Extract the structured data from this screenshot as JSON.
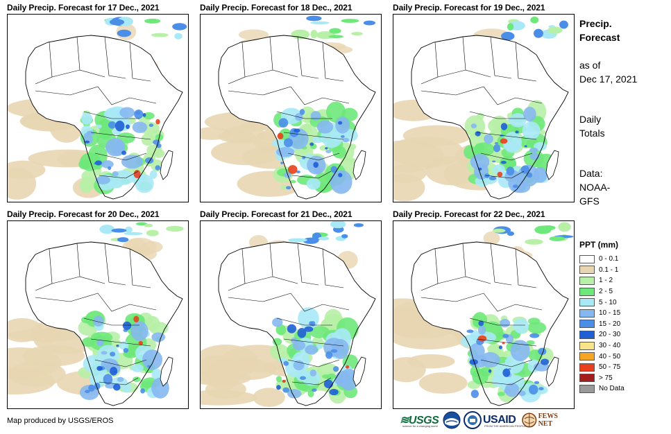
{
  "panels": [
    {
      "title": "Daily Precip. Forecast for 17 Dec., 2021"
    },
    {
      "title": "Daily Precip. Forecast for 18 Dec., 2021"
    },
    {
      "title": "Daily Precip. Forecast for 19 Dec., 2021"
    },
    {
      "title": "Daily Precip. Forecast for 20 Dec., 2021"
    },
    {
      "title": "Daily Precip. Forecast for 21 Dec., 2021"
    },
    {
      "title": "Daily Precip. Forecast for 22 Dec., 2021"
    }
  ],
  "sidebar": {
    "title_line1": "Precip.",
    "title_line2": "Forecast",
    "asof_line1": "as of",
    "asof_line2": "Dec 17, 2021",
    "totals_line1": "Daily",
    "totals_line2": "Totals",
    "data_line1": "Data:",
    "data_line2": "NOAA-",
    "data_line3": "GFS"
  },
  "legend": {
    "title": "PPT (mm)",
    "items": [
      {
        "label": "0 - 0.1",
        "color": "#ffffff"
      },
      {
        "label": "0.1 - 1",
        "color": "#e8d6b3"
      },
      {
        "label": "1 - 2",
        "color": "#b7f0a6"
      },
      {
        "label": "2 - 5",
        "color": "#6ee87a"
      },
      {
        "label": "5 - 10",
        "color": "#a9e9f6"
      },
      {
        "label": "10 - 15",
        "color": "#86b8f0"
      },
      {
        "label": "15 - 20",
        "color": "#4a8ee8"
      },
      {
        "label": "20 - 30",
        "color": "#1f5fd6"
      },
      {
        "label": "30 - 40",
        "color": "#f8e58a"
      },
      {
        "label": "40 - 50",
        "color": "#f5a623"
      },
      {
        "label": "50 - 75",
        "color": "#e8401c"
      },
      {
        "label": "> 75",
        "color": "#a51c1c"
      },
      {
        "label": "No Data",
        "color": "#9a9a9a"
      }
    ]
  },
  "footer": {
    "credit": "Map produced by USGS/EROS",
    "logos": {
      "usgs": "≋USGS",
      "usgs_tagline": "science for a changing world",
      "usaid": "USAID",
      "usaid_tagline": "FROM THE AMERICAN PEOPLE",
      "fews": "FEWS NET"
    }
  }
}
